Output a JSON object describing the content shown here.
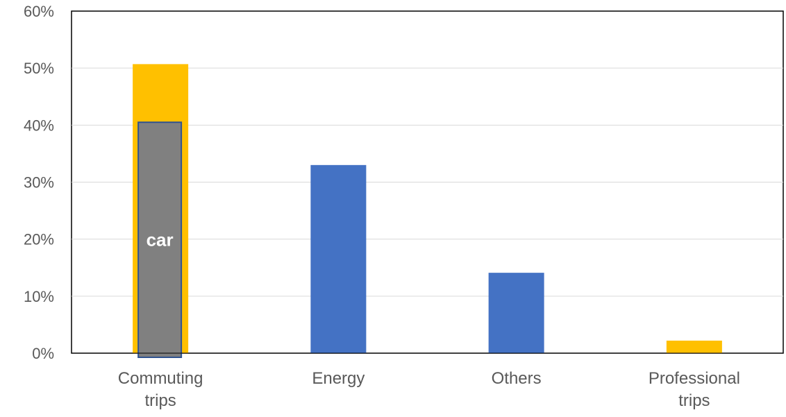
{
  "chart_data": {
    "type": "bar",
    "title": "",
    "xlabel": "",
    "ylabel": "",
    "ylim": [
      0,
      60
    ],
    "y_unit": "%",
    "y_ticks": [
      "0%",
      "10%",
      "20%",
      "30%",
      "40%",
      "50%",
      "60%"
    ],
    "grid": true,
    "legend": "none",
    "categories": [
      "Commuting trips",
      "Energy",
      "Others",
      "Professional trips"
    ],
    "category_labels": [
      [
        "Commuting",
        "trips"
      ],
      [
        "Energy"
      ],
      [
        "Others"
      ],
      [
        "Professional",
        "trips"
      ]
    ],
    "values": [
      50.7,
      33,
      14.1,
      2.2
    ],
    "bar_colors": [
      "#FFC000",
      "#4472C4",
      "#4472C4",
      "#FFC000"
    ],
    "overlay": {
      "category": "Commuting trips",
      "value": 40.5,
      "label": "car",
      "color": "#808080",
      "border_color": "#2F528F"
    }
  }
}
